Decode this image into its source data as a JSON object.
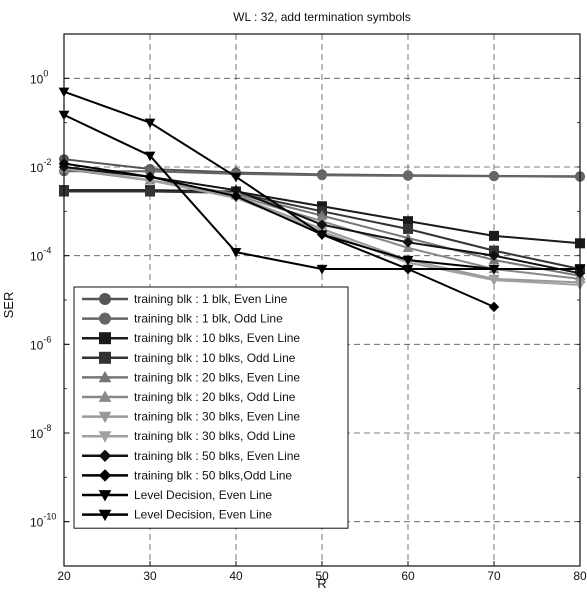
{
  "chart_data": {
    "type": "line",
    "title": "WL : 32, add termination symbols",
    "xlabel": "R",
    "ylabel": "SER",
    "xlim": [
      20,
      80
    ],
    "ylim_exponent": [
      -11,
      1
    ],
    "yscale": "log",
    "grid": true,
    "legend_position": "bottom-left",
    "x_ticks": [
      "20",
      "30",
      "40",
      "50",
      "60",
      "70",
      "80"
    ],
    "y_ticks": [
      {
        "base": "10",
        "exp": "0",
        "value": 0
      },
      {
        "base": "10",
        "exp": "-2",
        "value": -2
      },
      {
        "base": "10",
        "exp": "-4",
        "value": -4
      },
      {
        "base": "10",
        "exp": "-6",
        "value": -6
      },
      {
        "base": "10",
        "exp": "-8",
        "value": -8
      },
      {
        "base": "10",
        "exp": "-10",
        "value": -10
      }
    ],
    "series": [
      {
        "name": "training blk : 1 blk, Even Line",
        "marker": "circle",
        "color": "#555555",
        "x": [
          20,
          30,
          40,
          50,
          60,
          70,
          80
        ],
        "y": [
          0.015,
          0.009,
          0.0075,
          0.0068,
          0.0065,
          0.0063,
          0.0062
        ]
      },
      {
        "name": "training blk : 1 blk, Odd Line",
        "marker": "circle",
        "color": "#666666",
        "x": [
          20,
          30,
          40,
          50,
          60,
          70,
          80
        ],
        "y": [
          0.008,
          0.008,
          0.007,
          0.0065,
          0.0063,
          0.0062,
          0.006
        ]
      },
      {
        "name": "training blk : 10 blks, Even Line",
        "marker": "square",
        "color": "#1a1a1a",
        "x": [
          20,
          30,
          40,
          50,
          60,
          70,
          80
        ],
        "y": [
          0.003,
          0.003,
          0.0028,
          0.0013,
          0.0006,
          0.00028,
          0.00019
        ]
      },
      {
        "name": "training blk : 10 blks, Odd Line",
        "marker": "square",
        "color": "#333333",
        "x": [
          20,
          30,
          40,
          50,
          60,
          70,
          80
        ],
        "y": [
          0.0028,
          0.0028,
          0.0026,
          0.001,
          0.0004,
          0.00013,
          5e-05
        ]
      },
      {
        "name": "training blk : 20 blks, Even Line",
        "marker": "triangle-up",
        "color": "#777777",
        "x": [
          20,
          30,
          40,
          50,
          60,
          70,
          80
        ],
        "y": [
          0.009,
          0.005,
          0.0025,
          0.0008,
          0.00025,
          8e-05,
          3.5e-05
        ]
      },
      {
        "name": "training blk : 20 blks, Odd Line",
        "marker": "triangle-up",
        "color": "#888888",
        "x": [
          20,
          30,
          40,
          50,
          60,
          70,
          80
        ],
        "y": [
          0.009,
          0.005,
          0.0023,
          0.0006,
          0.00015,
          5e-05,
          3e-05
        ]
      },
      {
        "name": "training blk : 30 blks, Even Line",
        "marker": "triangle-down",
        "color": "#999999",
        "x": [
          20,
          30,
          40,
          50,
          60,
          70,
          80
        ],
        "y": [
          0.01,
          0.005,
          0.0022,
          0.0004,
          8e-05,
          3e-05,
          2.5e-05
        ]
      },
      {
        "name": "training blk : 30 blks, Odd Line",
        "marker": "triangle-down",
        "color": "#a0a0a0",
        "x": [
          20,
          30,
          40,
          50,
          60,
          70,
          80
        ],
        "y": [
          0.0095,
          0.005,
          0.002,
          0.00035,
          7e-05,
          2.8e-05,
          2.2e-05
        ]
      },
      {
        "name": "training blk : 50 blks, Even Line",
        "marker": "diamond",
        "color": "#111111",
        "x": [
          20,
          30,
          40,
          50,
          60,
          70,
          80
        ],
        "y": [
          0.01,
          0.006,
          0.003,
          0.0005,
          0.0002,
          0.0001,
          4e-05
        ]
      },
      {
        "name": "training blk : 50 blks,Odd Line",
        "marker": "diamond",
        "color": "#000000",
        "x": [
          20,
          30,
          40,
          50,
          60,
          70
        ],
        "y": [
          0.012,
          0.006,
          0.0022,
          0.0003,
          5e-05,
          7e-06
        ]
      },
      {
        "name": "Level Decision, Even Line",
        "marker": "triangle-down",
        "color": "#000000",
        "x": [
          20,
          30,
          40,
          50,
          60,
          70,
          80
        ],
        "y": [
          0.5,
          0.1,
          0.006,
          0.0003,
          8e-05,
          5e-05,
          5e-05
        ]
      },
      {
        "name": "Level Decision, Even Line",
        "marker": "triangle-down",
        "color": "#000000",
        "x": [
          20,
          30,
          40,
          50,
          60,
          70,
          80
        ],
        "y": [
          0.15,
          0.018,
          0.00012,
          5e-05,
          5e-05,
          5e-05,
          5e-05
        ]
      }
    ]
  }
}
